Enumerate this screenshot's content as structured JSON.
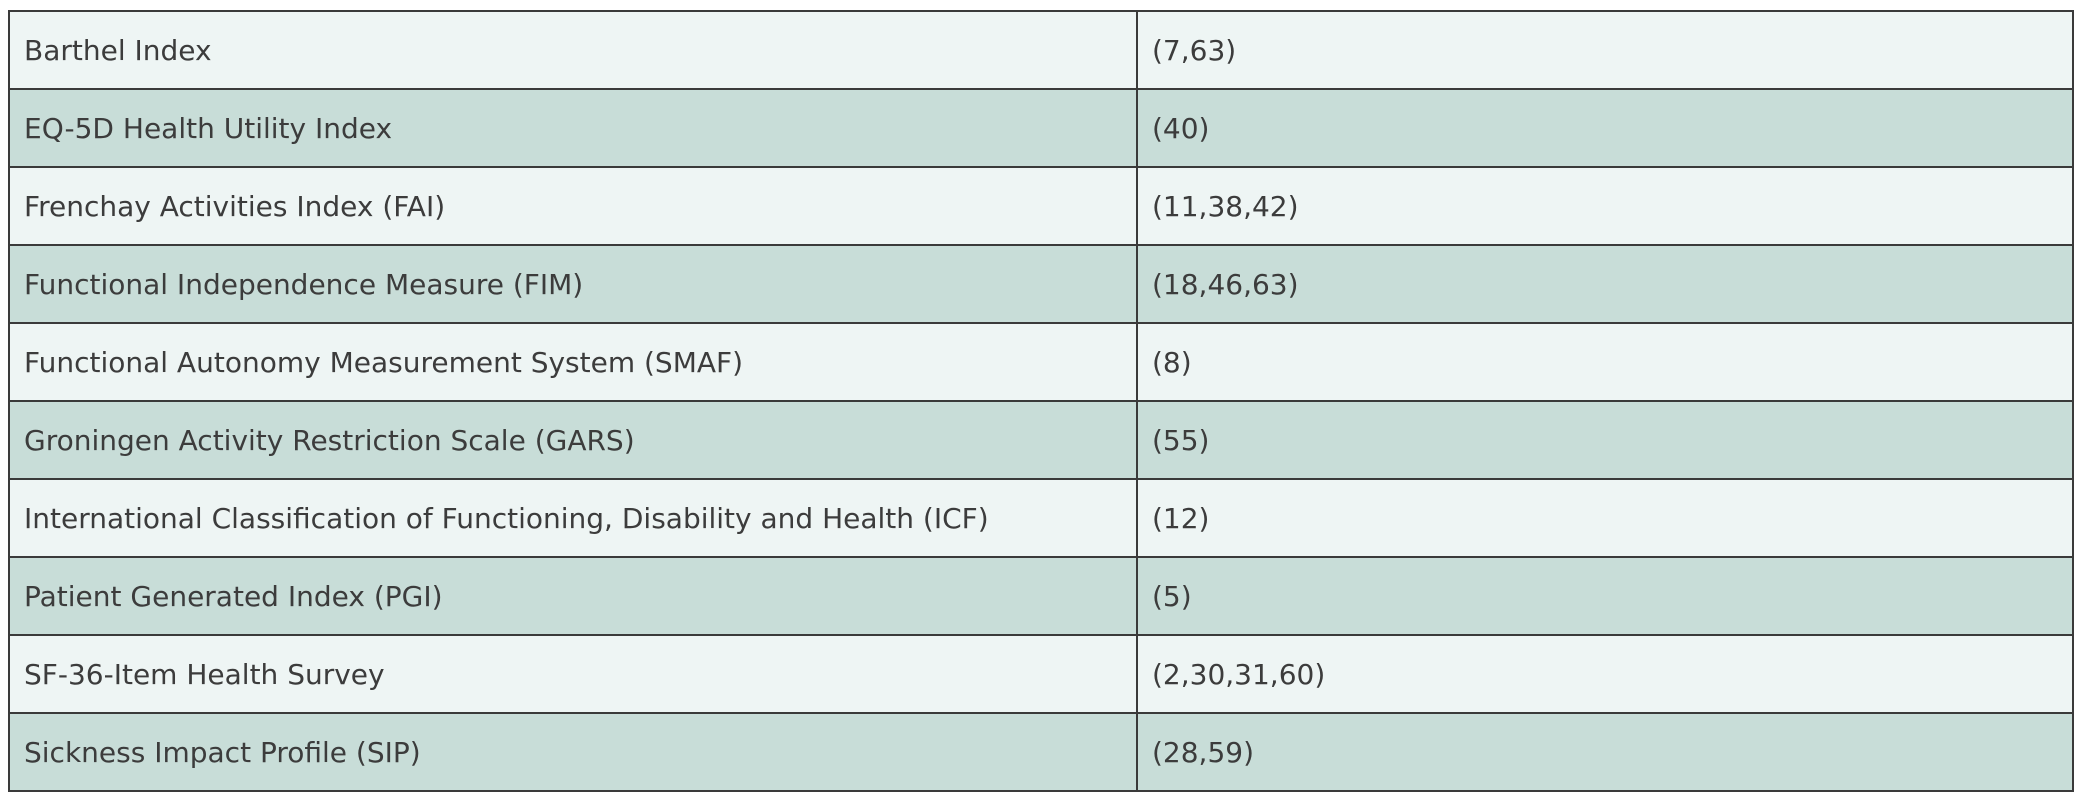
{
  "table": {
    "rows": [
      [
        "Barthel Index",
        "(7,63)"
      ],
      [
        "EQ-5D Health Utility Index",
        "(40)"
      ],
      [
        "Frenchay Activities Index (FAI)",
        "(11,38,42)"
      ],
      [
        "Functional Independence Measure (FIM)",
        "(18,46,63)"
      ],
      [
        "Functional Autonomy Measurement System (SMAF)",
        "(8)"
      ],
      [
        "Groningen Activity Restriction Scale (GARS)",
        "(55)"
      ],
      [
        "International Classification of Functioning, Disability and Health (ICF)",
        "(12)"
      ],
      [
        "Patient Generated Index (PGI)",
        "(5)"
      ],
      [
        "SF-36-Item Health Survey",
        "(2,30,31,60)"
      ],
      [
        "Sickness Impact Profile (SIP)",
        "(28,59)"
      ]
    ]
  }
}
